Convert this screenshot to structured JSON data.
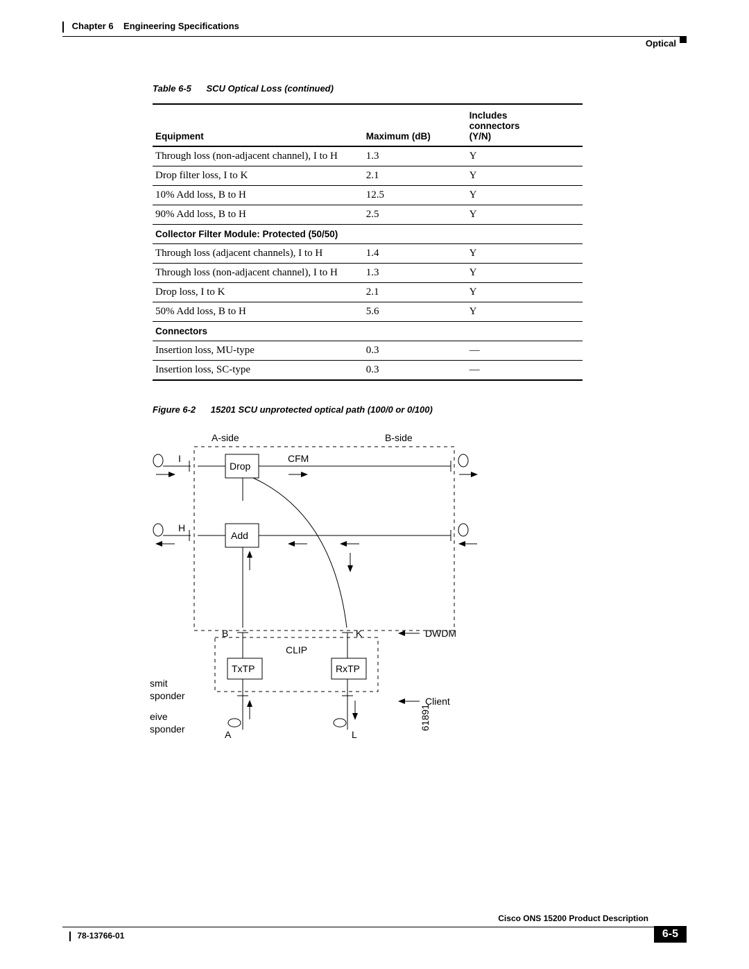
{
  "header": {
    "chapter": "Chapter 6",
    "chapter_title": "Engineering Specifications",
    "section_label": "Optical"
  },
  "table": {
    "caption_num": "Table 6-5",
    "caption_text": "SCU Optical Loss (continued)",
    "columns": [
      "Equipment",
      "Maximum (dB)",
      "Includes connectors (Y/N)"
    ],
    "rows": [
      {
        "type": "data",
        "cells": [
          "Through loss (non-adjacent channel), I to H",
          "1.3",
          "Y"
        ]
      },
      {
        "type": "data",
        "cells": [
          "Drop filter loss, I to K",
          "2.1",
          "Y"
        ]
      },
      {
        "type": "data",
        "cells": [
          "10% Add loss, B to H",
          "12.5",
          "Y"
        ]
      },
      {
        "type": "data",
        "cells": [
          "90% Add loss, B to H",
          "2.5",
          "Y"
        ]
      },
      {
        "type": "section",
        "label": "Collector Filter Module: Protected (50/50)"
      },
      {
        "type": "data",
        "cells": [
          "Through loss (adjacent channels), I to H",
          "1.4",
          "Y"
        ]
      },
      {
        "type": "data",
        "cells": [
          "Through loss (non-adjacent channel), I to H",
          "1.3",
          "Y"
        ]
      },
      {
        "type": "data",
        "cells": [
          "Drop loss, I to K",
          "2.1",
          "Y"
        ]
      },
      {
        "type": "data",
        "cells": [
          "50% Add loss, B to H",
          "5.6",
          "Y"
        ]
      },
      {
        "type": "section",
        "label": "Connectors"
      },
      {
        "type": "data",
        "cells": [
          "Insertion loss, MU-type",
          "0.3",
          "—"
        ]
      },
      {
        "type": "data",
        "cells": [
          "Insertion loss, SC-type",
          "0.3",
          "—"
        ]
      }
    ]
  },
  "figure": {
    "caption_num": "Figure 6-2",
    "caption_text": "15201 SCU unprotected optical path (100/0 or 0/100)",
    "labels": {
      "aside": "A-side",
      "bside": "B-side",
      "cfm": "CFM",
      "drop": "Drop",
      "add": "Add",
      "I": "I",
      "H": "H",
      "B": "B",
      "K": "K",
      "dwdm": "DWDM",
      "clip": "CLIP",
      "txtp": "TxTP",
      "rxtp": "RxTP",
      "smit": "smit",
      "sponder1": "sponder",
      "eive": "eive",
      "sponder2": "sponder",
      "client": "Client",
      "A": "A",
      "L": "L",
      "refnum": "61891"
    }
  },
  "footer": {
    "doc_title": "Cisco ONS 15200 Product Description",
    "doc_id": "78-13766-01",
    "page_num": "6-5"
  }
}
